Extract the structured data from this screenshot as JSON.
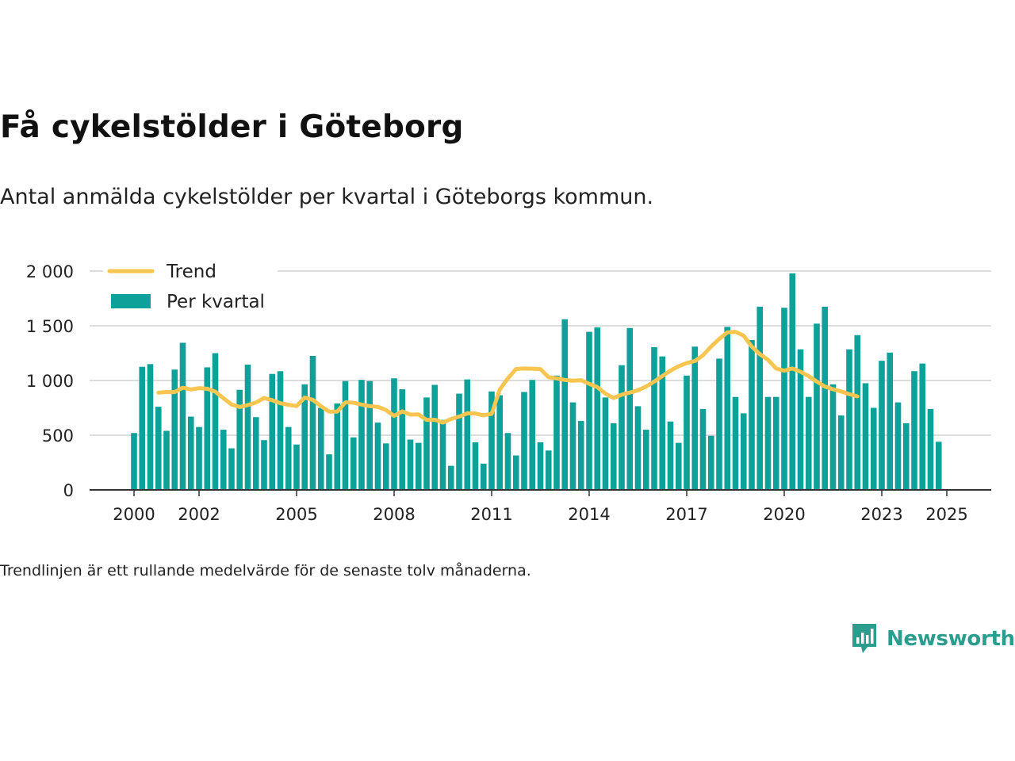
{
  "title": "Få cykelstölder i Göteborg",
  "subtitle": "Antal anmälda cykelstölder per kvartal i Göteborgs kommun.",
  "footnote": "Trendlinjen är ett rullande medelvärde för de senaste tolv månaderna.",
  "brand": {
    "name": "Newsworthy",
    "color": "#2a9d8f",
    "icon": "newsworthy-chart-icon"
  },
  "colors": {
    "bars": "#0da199",
    "trend": "#f7c550",
    "grid": "#dddddd",
    "axis": "#333333"
  },
  "chart_data": {
    "type": "bar",
    "title": "Få cykelstölder i Göteborg",
    "xlabel": "",
    "ylabel": "",
    "ylim": [
      0,
      2000
    ],
    "yticks": [
      0,
      500,
      1000,
      1500,
      2000
    ],
    "ytick_labels": [
      "0",
      "500",
      "1 000",
      "1 500",
      "2 000"
    ],
    "xticks": [
      2000,
      2002,
      2005,
      2008,
      2011,
      2014,
      2017,
      2020,
      2023,
      2025
    ],
    "xtick_labels": [
      "2000",
      "2002",
      "2005",
      "2008",
      "2011",
      "2014",
      "2017",
      "2020",
      "2023",
      "2025"
    ],
    "legend": [
      "Trend",
      "Per kvartal"
    ],
    "legend_position": "top-left",
    "grid": true,
    "start": {
      "year": 2000,
      "quarter": 1
    },
    "series": [
      {
        "name": "Per kvartal",
        "type": "bar",
        "values": [
          520,
          1125,
          1150,
          760,
          540,
          1100,
          1345,
          670,
          575,
          1120,
          1250,
          550,
          380,
          915,
          1145,
          665,
          455,
          1060,
          1085,
          575,
          415,
          965,
          1225,
          750,
          325,
          790,
          995,
          480,
          1005,
          995,
          615,
          425,
          1020,
          920,
          460,
          430,
          845,
          960,
          640,
          220,
          880,
          1010,
          435,
          240,
          900,
          865,
          520,
          315,
          895,
          1005,
          435,
          360,
          1045,
          1560,
          800,
          630,
          1445,
          1485,
          845,
          610,
          1140,
          1480,
          765,
          550,
          1305,
          1220,
          625,
          430,
          1045,
          1310,
          740,
          495,
          1200,
          1490,
          850,
          700,
          1370,
          1675,
          850,
          850,
          1665,
          1980,
          1285,
          850,
          1520,
          1675,
          965,
          680,
          1285,
          1415,
          975,
          750,
          1180,
          1255,
          800,
          610,
          1085,
          1155,
          740,
          440
        ]
      },
      {
        "name": "Trend",
        "type": "line",
        "start_index": 3,
        "values": [
          889,
          895,
          894,
          934,
          918,
          930,
          925,
          898,
          838,
          781,
          758,
          775,
          799,
          840,
          820,
          792,
          778,
          766,
          844,
          823,
          765,
          716,
          716,
          800,
          797,
          780,
          765,
          759,
          730,
          676,
          718,
          688,
          690,
          640,
          641,
          615,
          648,
          670,
          700,
          698,
          682,
          695,
          918,
          1020,
          1105,
          1110,
          1108,
          1104,
          1030,
          1020,
          1005,
          998,
          1003,
          970,
          940,
          880,
          840,
          870,
          890,
          910,
          945,
          990,
          1040,
          1090,
          1130,
          1160,
          1178,
          1230,
          1310,
          1380,
          1440,
          1445,
          1410,
          1310,
          1240,
          1190,
          1110,
          1090,
          1110,
          1080,
          1040,
          990,
          945,
          920,
          900,
          875,
          855
        ]
      }
    ]
  }
}
